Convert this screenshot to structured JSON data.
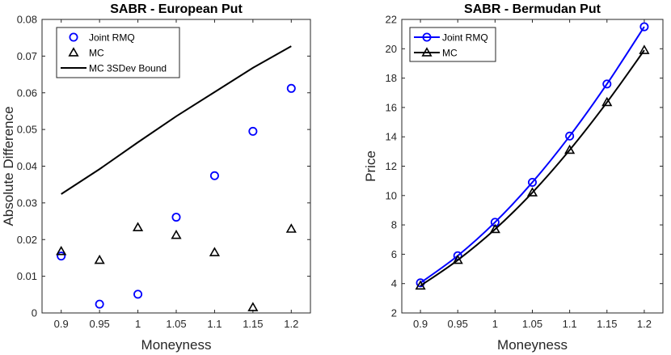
{
  "chart_data": [
    {
      "type": "scatter",
      "title": "SABR - European Put",
      "xlabel": "Moneyness",
      "ylabel": "Absolute Difference",
      "xlim": [
        0.875,
        1.225
      ],
      "ylim": [
        0,
        0.08
      ],
      "xticks": [
        0.9,
        0.95,
        1,
        1.05,
        1.1,
        1.15,
        1.2
      ],
      "xtick_labels": [
        "0.9",
        "0.95",
        "1",
        "1.05",
        "1.1",
        "1.15",
        "1.2"
      ],
      "yticks": [
        0,
        0.01,
        0.02,
        0.03,
        0.04,
        0.05,
        0.06,
        0.07,
        0.08
      ],
      "ytick_labels": [
        "0",
        "0.01",
        "0.02",
        "0.03",
        "0.04",
        "0.05",
        "0.06",
        "0.07",
        "0.08"
      ],
      "legend_position": "top-left",
      "series": [
        {
          "name": "Joint RMQ",
          "kind": "scatter",
          "marker": "circle",
          "color": "#0000ff",
          "x": [
            0.9,
            0.95,
            1,
            1.05,
            1.1,
            1.15,
            1.2
          ],
          "values": [
            0.0155,
            0.0024,
            0.0051,
            0.0261,
            0.0374,
            0.0495,
            0.0612
          ]
        },
        {
          "name": "MC",
          "kind": "scatter",
          "marker": "triangle",
          "color": "#000000",
          "x": [
            0.9,
            0.95,
            1,
            1.05,
            1.1,
            1.15,
            1.2
          ],
          "values": [
            0.0168,
            0.0144,
            0.0233,
            0.0212,
            0.0165,
            0.0015,
            0.0229
          ]
        },
        {
          "name": "MC 3SDev Bound",
          "kind": "line",
          "marker": "none",
          "color": "#000000",
          "x": [
            0.9,
            0.95,
            1,
            1.05,
            1.1,
            1.15,
            1.2
          ],
          "values": [
            0.0324,
            0.0392,
            0.0465,
            0.0536,
            0.0602,
            0.0668,
            0.0727
          ]
        }
      ]
    },
    {
      "type": "line",
      "title": "SABR - Bermudan Put",
      "xlabel": "Moneyness",
      "ylabel": "Price",
      "xlim": [
        0.875,
        1.225
      ],
      "ylim": [
        2,
        22
      ],
      "xticks": [
        0.9,
        0.95,
        1,
        1.05,
        1.1,
        1.15,
        1.2
      ],
      "xtick_labels": [
        "0.9",
        "0.95",
        "1",
        "1.05",
        "1.1",
        "1.15",
        "1.2"
      ],
      "yticks": [
        2,
        4,
        6,
        8,
        10,
        12,
        14,
        16,
        18,
        20,
        22
      ],
      "ytick_labels": [
        "2",
        "4",
        "6",
        "8",
        "10",
        "12",
        "14",
        "16",
        "18",
        "20",
        "22"
      ],
      "legend_position": "top-left",
      "series": [
        {
          "name": "Joint RMQ",
          "kind": "line",
          "marker": "circle",
          "color": "#0000ff",
          "x": [
            0.9,
            0.95,
            1,
            1.05,
            1.1,
            1.15,
            1.2
          ],
          "values": [
            4.05,
            5.9,
            8.18,
            10.9,
            14.05,
            17.6,
            21.5
          ]
        },
        {
          "name": "MC",
          "kind": "line",
          "marker": "triangle",
          "color": "#000000",
          "x": [
            0.9,
            0.95,
            1,
            1.05,
            1.1,
            1.15,
            1.2
          ],
          "values": [
            3.85,
            5.6,
            7.7,
            10.2,
            13.1,
            16.35,
            19.9
          ]
        }
      ]
    }
  ]
}
